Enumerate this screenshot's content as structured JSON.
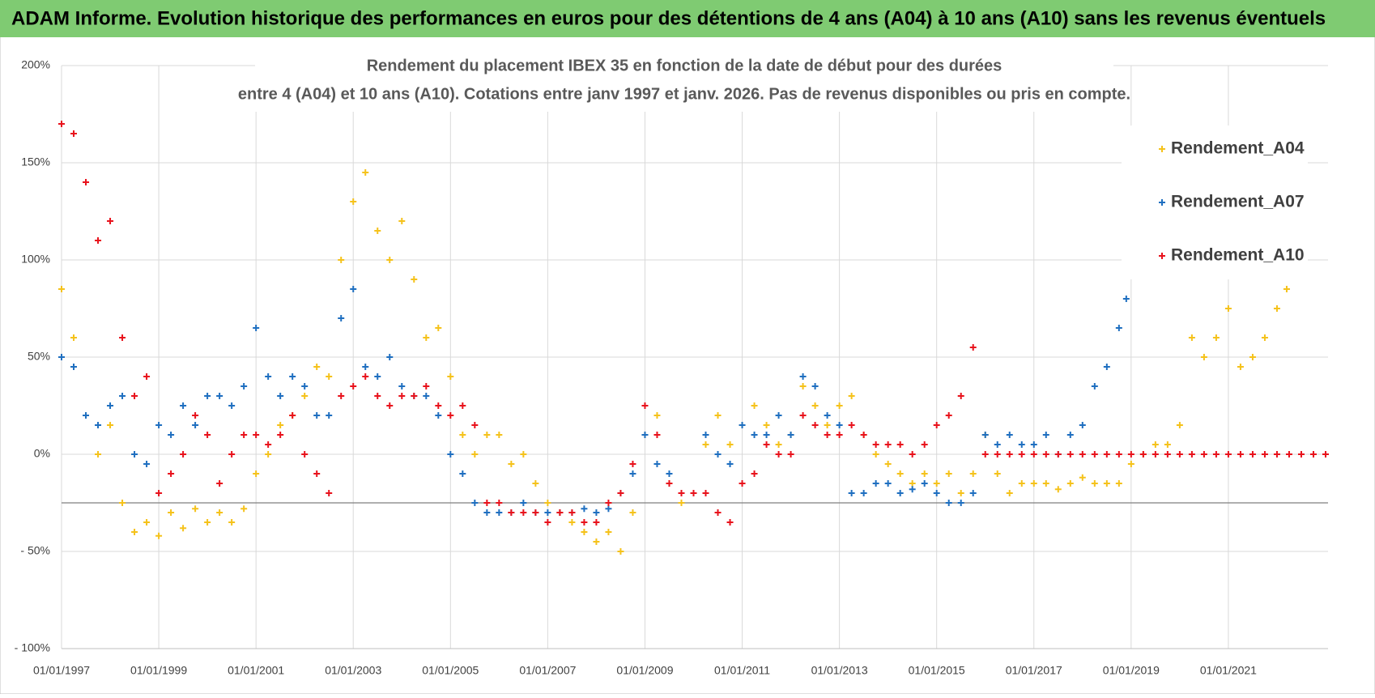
{
  "header": {
    "title": "ADAM Informe. Evolution historique des performances en euros pour des détentions de 4 ans (A04) à 10 ans (A10) sans les revenus éventuels"
  },
  "chart_data": {
    "type": "scatter",
    "title": "Rendement du placement IBEX 35 en fonction de la date de début pour des durées",
    "subtitle": "entre 4 (A04) et 10 ans (A10).  Cotations entre janv 1997 et janv. 2026. Pas de revenus disponibles ou pris en compte.",
    "xlim": [
      1997,
      2023.05
    ],
    "xticks": [
      {
        "value": 1997,
        "label": "01/01/1997"
      },
      {
        "value": 1999,
        "label": "01/01/1999"
      },
      {
        "value": 2001,
        "label": "01/01/2001"
      },
      {
        "value": 2003,
        "label": "01/01/2003"
      },
      {
        "value": 2005,
        "label": "01/01/2005"
      },
      {
        "value": 2007,
        "label": "01/01/2007"
      },
      {
        "value": 2009,
        "label": "01/01/2009"
      },
      {
        "value": 2011,
        "label": "01/01/2011"
      },
      {
        "value": 2013,
        "label": "01/01/2013"
      },
      {
        "value": 2015,
        "label": "01/01/2015"
      },
      {
        "value": 2017,
        "label": "01/01/2017"
      },
      {
        "value": 2019,
        "label": "01/01/2019"
      },
      {
        "value": 2021,
        "label": "01/01/2021"
      }
    ],
    "ylim": [
      -100,
      200
    ],
    "yticks": [
      {
        "value": -100,
        "label": "- 100%"
      },
      {
        "value": -50,
        "label": "- 50%"
      },
      {
        "value": 0,
        "label": "0%"
      },
      {
        "value": 50,
        "label": "50%"
      },
      {
        "value": 100,
        "label": "100%"
      },
      {
        "value": 150,
        "label": "150%"
      },
      {
        "value": 200,
        "label": "200%"
      }
    ],
    "grid": true,
    "hline": -25,
    "legend": "right",
    "series": [
      {
        "name": "Rendement_A04",
        "color": "#f5c21b",
        "x": [
          1997,
          1997.25,
          1997.5,
          1997.75,
          1998,
          1998.25,
          1998.5,
          1998.75,
          1999,
          1999.25,
          1999.5,
          1999.75,
          2000,
          2000.25,
          2000.5,
          2000.75,
          2001,
          2001.25,
          2001.5,
          2001.75,
          2002,
          2002.25,
          2002.5,
          2002.75,
          2003,
          2003.25,
          2003.5,
          2003.75,
          2004,
          2004.25,
          2004.5,
          2004.75,
          2005,
          2005.25,
          2005.5,
          2005.75,
          2006,
          2006.25,
          2006.5,
          2006.75,
          2007,
          2007.25,
          2007.5,
          2007.75,
          2008,
          2008.25,
          2008.5,
          2008.75,
          2009,
          2009.25,
          2009.5,
          2009.75,
          2010,
          2010.25,
          2010.5,
          2010.75,
          2011,
          2011.25,
          2011.5,
          2011.75,
          2012,
          2012.25,
          2012.5,
          2012.75,
          2013,
          2013.25,
          2013.5,
          2013.75,
          2014,
          2014.25,
          2014.5,
          2014.75,
          2015,
          2015.25,
          2015.5,
          2015.75,
          2016,
          2016.25,
          2016.5,
          2016.75,
          2017,
          2017.25,
          2017.5,
          2017.75,
          2018,
          2018.25,
          2018.5,
          2018.75,
          2019,
          2019.25,
          2019.5,
          2019.75,
          2020,
          2020.25,
          2020.5,
          2020.75,
          2021,
          2021.25,
          2021.5,
          2021.75,
          2022,
          2022.2
        ],
        "values": [
          85,
          60,
          20,
          0,
          15,
          -25,
          -40,
          -35,
          -42,
          -30,
          -38,
          -28,
          -35,
          -30,
          -35,
          -28,
          -10,
          0,
          15,
          20,
          30,
          45,
          40,
          100,
          130,
          145,
          115,
          100,
          120,
          90,
          60,
          65,
          40,
          10,
          0,
          10,
          10,
          -5,
          0,
          -15,
          -25,
          -30,
          -35,
          -40,
          -45,
          -40,
          -50,
          -30,
          10,
          20,
          -15,
          -25,
          -20,
          5,
          20,
          5,
          15,
          25,
          15,
          5,
          10,
          35,
          25,
          15,
          25,
          30,
          10,
          0,
          -5,
          -10,
          -15,
          -10,
          -15,
          -10,
          -20,
          -10,
          10,
          -10,
          -20,
          -15,
          -15,
          -15,
          -18,
          -15,
          -12,
          -15,
          -15,
          -15,
          -5,
          0,
          5,
          5,
          15,
          60,
          50,
          60,
          75,
          45,
          50,
          60,
          75,
          85
        ]
      },
      {
        "name": "Rendement_A07",
        "color": "#1f6fc0",
        "x": [
          1997,
          1997.25,
          1997.5,
          1997.75,
          1998,
          1998.25,
          1998.5,
          1998.75,
          1999,
          1999.25,
          1999.5,
          1999.75,
          2000,
          2000.25,
          2000.5,
          2000.75,
          2001,
          2001.25,
          2001.5,
          2001.75,
          2002,
          2002.25,
          2002.5,
          2002.75,
          2003,
          2003.25,
          2003.5,
          2003.75,
          2004,
          2004.25,
          2004.5,
          2004.75,
          2005,
          2005.25,
          2005.5,
          2005.75,
          2006,
          2006.25,
          2006.5,
          2006.75,
          2007,
          2007.25,
          2007.5,
          2007.75,
          2008,
          2008.25,
          2008.5,
          2008.75,
          2009,
          2009.25,
          2009.5,
          2009.75,
          2010,
          2010.25,
          2010.5,
          2010.75,
          2011,
          2011.25,
          2011.5,
          2011.75,
          2012,
          2012.25,
          2012.5,
          2012.75,
          2013,
          2013.25,
          2013.5,
          2013.75,
          2014,
          2014.25,
          2014.5,
          2014.75,
          2015,
          2015.25,
          2015.5,
          2015.75,
          2016,
          2016.25,
          2016.5,
          2016.75,
          2017,
          2017.25,
          2017.5,
          2017.75,
          2018,
          2018.25,
          2018.5,
          2018.75,
          2018.9
        ],
        "values": [
          50,
          45,
          20,
          15,
          25,
          30,
          0,
          -5,
          15,
          10,
          25,
          15,
          30,
          30,
          25,
          35,
          65,
          40,
          30,
          40,
          35,
          20,
          20,
          70,
          85,
          45,
          40,
          50,
          35,
          30,
          30,
          20,
          0,
          -10,
          -25,
          -30,
          -30,
          -30,
          -25,
          -30,
          -30,
          -30,
          -30,
          -28,
          -30,
          -28,
          -20,
          -10,
          10,
          -5,
          -10,
          -20,
          -20,
          10,
          0,
          -5,
          15,
          10,
          10,
          20,
          10,
          40,
          35,
          20,
          15,
          -20,
          -20,
          -15,
          -15,
          -20,
          -18,
          -15,
          -20,
          -25,
          -25,
          -20,
          10,
          5,
          10,
          5,
          5,
          10,
          0,
          10,
          15,
          35,
          45,
          65,
          80
        ]
      },
      {
        "name": "Rendement_A10",
        "color": "#e8121c",
        "x": [
          1997,
          1997.25,
          1997.5,
          1997.75,
          1998,
          1998.25,
          1998.5,
          1998.75,
          1999,
          1999.25,
          1999.5,
          1999.75,
          2000,
          2000.25,
          2000.5,
          2000.75,
          2001,
          2001.25,
          2001.5,
          2001.75,
          2002,
          2002.25,
          2002.5,
          2002.75,
          2003,
          2003.25,
          2003.5,
          2003.75,
          2004,
          2004.25,
          2004.5,
          2004.75,
          2005,
          2005.25,
          2005.5,
          2005.75,
          2006,
          2006.25,
          2006.5,
          2006.75,
          2007,
          2007.25,
          2007.5,
          2007.75,
          2008,
          2008.25,
          2008.5,
          2008.75,
          2009,
          2009.25,
          2009.5,
          2009.75,
          2010,
          2010.25,
          2010.5,
          2010.75,
          2011,
          2011.25,
          2011.5,
          2011.75,
          2012,
          2012.25,
          2012.5,
          2012.75,
          2013,
          2013.25,
          2013.5,
          2013.75,
          2014,
          2014.25,
          2014.5,
          2014.75,
          2015,
          2015.25,
          2015.5,
          2015.75,
          2016,
          2016.25,
          2016.5,
          2016.75,
          2017,
          2017.25,
          2017.5,
          2017.75,
          2018,
          2018.25,
          2018.5,
          2018.75,
          2019,
          2019.25,
          2019.5,
          2019.75,
          2020,
          2020.25,
          2020.5,
          2020.75,
          2021,
          2021.25,
          2021.5,
          2021.75,
          2022,
          2022.25,
          2022.5,
          2022.75,
          2023
        ],
        "values": [
          170,
          165,
          140,
          110,
          120,
          60,
          30,
          40,
          -20,
          -10,
          0,
          20,
          10,
          -15,
          0,
          10,
          10,
          5,
          10,
          20,
          0,
          -10,
          -20,
          30,
          35,
          40,
          30,
          25,
          30,
          30,
          35,
          25,
          20,
          25,
          15,
          -25,
          -25,
          -30,
          -30,
          -30,
          -35,
          -30,
          -30,
          -35,
          -35,
          -25,
          -20,
          -5,
          25,
          10,
          -15,
          -20,
          -20,
          -20,
          -30,
          -35,
          -15,
          -10,
          5,
          0,
          0,
          20,
          15,
          10,
          10,
          15,
          10,
          5,
          5,
          5,
          0,
          5,
          15,
          20,
          30,
          55,
          0,
          0,
          0,
          0,
          0,
          0,
          0,
          0,
          0,
          0,
          0,
          0,
          0,
          0,
          0,
          0,
          0,
          0,
          0,
          0,
          0,
          0,
          0,
          0,
          0,
          0,
          0,
          0,
          0
        ]
      }
    ]
  }
}
